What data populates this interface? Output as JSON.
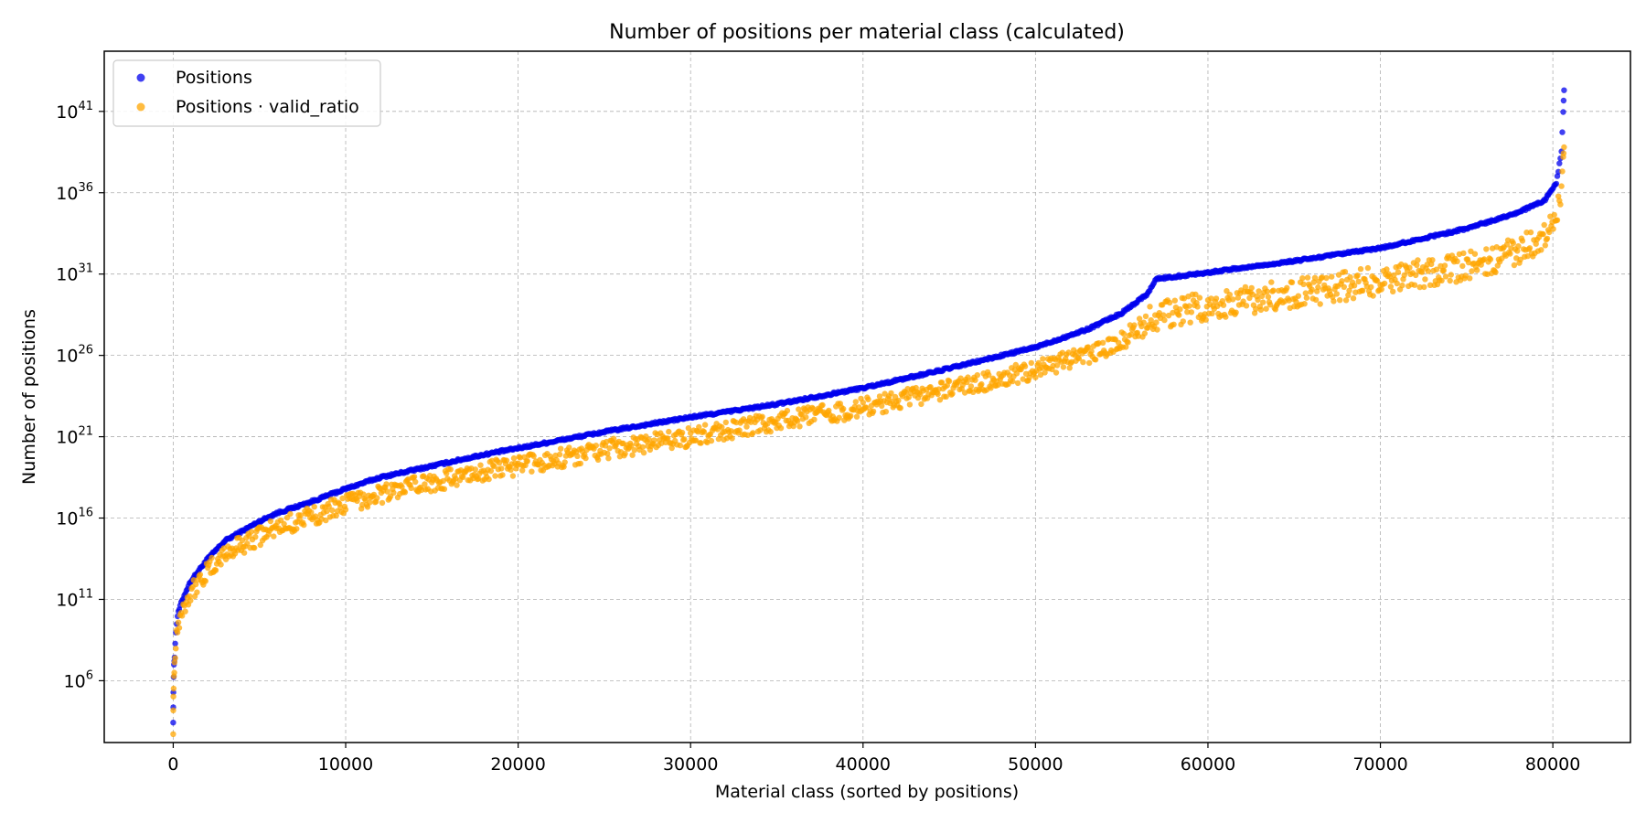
{
  "chart_data": {
    "type": "scatter",
    "title": "Number of positions per material class (calculated)",
    "xlabel": "Material class (sorted by positions)",
    "ylabel": "Number of positions",
    "xlim": [
      -4000,
      84500
    ],
    "ylim_exponent": [
      2.2,
      44.7
    ],
    "y_scale": "log",
    "grid": true,
    "legend_position": "top-left",
    "x_ticks": [
      0,
      10000,
      20000,
      30000,
      40000,
      50000,
      60000,
      70000,
      80000
    ],
    "y_ticks": [
      {
        "base": "10",
        "exp": "6",
        "value_exponent": 6
      },
      {
        "base": "10",
        "exp": "11",
        "value_exponent": 11
      },
      {
        "base": "10",
        "exp": "16",
        "value_exponent": 16
      },
      {
        "base": "10",
        "exp": "21",
        "value_exponent": 21
      },
      {
        "base": "10",
        "exp": "26",
        "value_exponent": 26
      },
      {
        "base": "10",
        "exp": "31",
        "value_exponent": 31
      },
      {
        "base": "10",
        "exp": "36",
        "value_exponent": 36
      },
      {
        "base": "10",
        "exp": "41",
        "value_exponent": 41
      }
    ],
    "series": [
      {
        "name": "Positions",
        "color": "#0000ee",
        "x_log10y": [
          [
            0,
            3.5
          ],
          [
            10,
            5.3
          ],
          [
            40,
            7.0
          ],
          [
            80,
            7.5
          ],
          [
            150,
            9.0
          ],
          [
            250,
            10.0
          ],
          [
            400,
            10.6
          ],
          [
            700,
            11.4
          ],
          [
            1000,
            12.1
          ],
          [
            1500,
            12.8
          ],
          [
            2000,
            13.5
          ],
          [
            3000,
            14.6
          ],
          [
            4000,
            15.2
          ],
          [
            5000,
            15.8
          ],
          [
            6000,
            16.3
          ],
          [
            8000,
            17.0
          ],
          [
            10000,
            17.8
          ],
          [
            12000,
            18.5
          ],
          [
            15000,
            19.2
          ],
          [
            18000,
            19.9
          ],
          [
            20000,
            20.3
          ],
          [
            25000,
            21.3
          ],
          [
            30000,
            22.2
          ],
          [
            35000,
            23.0
          ],
          [
            40000,
            24.0
          ],
          [
            45000,
            25.2
          ],
          [
            50000,
            26.5
          ],
          [
            53000,
            27.6
          ],
          [
            55000,
            28.6
          ],
          [
            56500,
            29.8
          ],
          [
            57000,
            30.7
          ],
          [
            60000,
            31.1
          ],
          [
            65000,
            31.8
          ],
          [
            70000,
            32.6
          ],
          [
            75000,
            33.8
          ],
          [
            78000,
            34.8
          ],
          [
            79500,
            35.5
          ],
          [
            80200,
            36.6
          ],
          [
            80500,
            38.5
          ],
          [
            80600,
            41.0
          ],
          [
            80650,
            42.3
          ]
        ]
      },
      {
        "name": "Positions · valid_ratio",
        "color": "#ffa500",
        "x_log10y": [
          [
            0,
            3.3
          ],
          [
            10,
            5.0
          ],
          [
            40,
            6.4
          ],
          [
            80,
            7.0
          ],
          [
            150,
            8.5
          ],
          [
            250,
            9.3
          ],
          [
            400,
            10.0
          ],
          [
            700,
            10.8
          ],
          [
            1000,
            11.4
          ],
          [
            1500,
            12.1
          ],
          [
            2000,
            12.7
          ],
          [
            3000,
            13.8
          ],
          [
            4000,
            14.4
          ],
          [
            5000,
            14.9
          ],
          [
            6000,
            15.4
          ],
          [
            8000,
            16.1
          ],
          [
            10000,
            16.9
          ],
          [
            12000,
            17.5
          ],
          [
            15000,
            18.2
          ],
          [
            18000,
            18.9
          ],
          [
            20000,
            19.2
          ],
          [
            25000,
            20.2
          ],
          [
            30000,
            21.0
          ],
          [
            35000,
            21.9
          ],
          [
            40000,
            22.8
          ],
          [
            45000,
            23.9
          ],
          [
            50000,
            25.1
          ],
          [
            53000,
            26.0
          ],
          [
            55000,
            26.9
          ],
          [
            57000,
            28.4
          ],
          [
            60000,
            29.1
          ],
          [
            65000,
            29.8
          ],
          [
            70000,
            30.6
          ],
          [
            75000,
            31.5
          ],
          [
            78000,
            32.4
          ],
          [
            79500,
            33.2
          ],
          [
            80200,
            34.5
          ],
          [
            80500,
            36.2
          ],
          [
            80600,
            37.8
          ],
          [
            80650,
            38.8
          ]
        ]
      }
    ]
  }
}
